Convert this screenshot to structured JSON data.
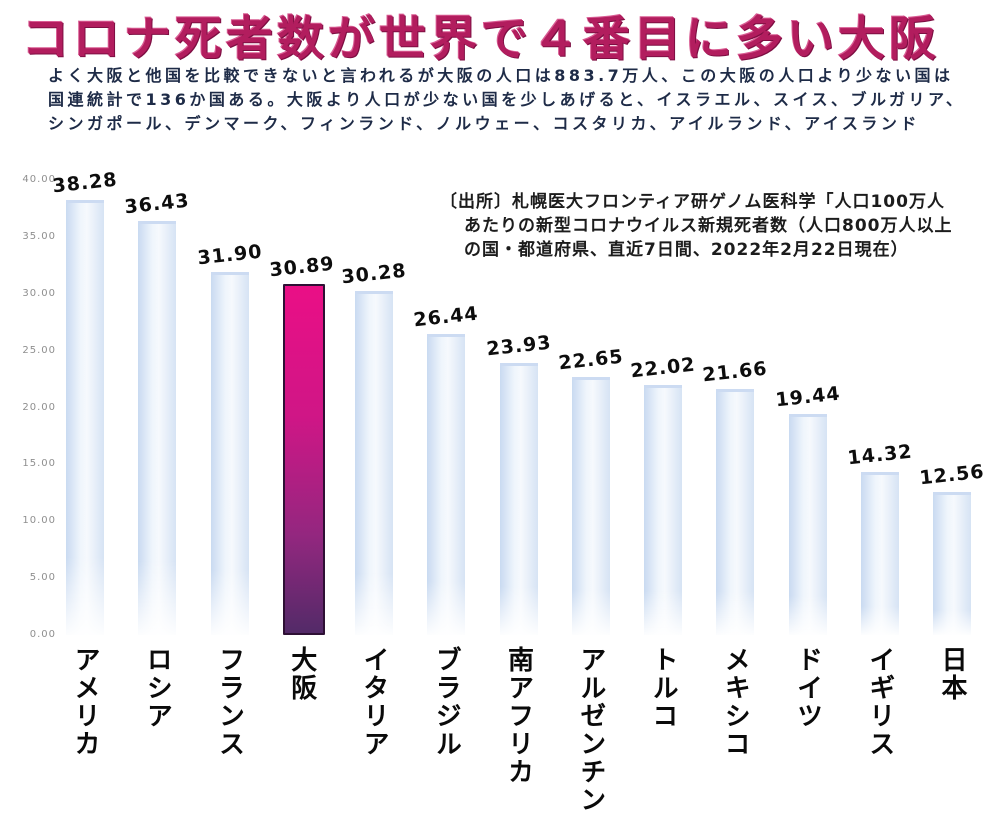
{
  "title": "コロナ死者数が世界で４番目に多い大阪",
  "subtitle_lines": [
    "よく大阪と他国を比較できないと言われるが大阪の人口は883.7万人、この大阪の人口より少ない国は",
    "国連統計で136か国ある。大阪より人口が少ない国を少しあげると、イスラエル、スイス、ブルガリア、",
    "シンガポール、デンマーク、フィンランド、ノルウェー、コスタリカ、アイルランド、アイスランド"
  ],
  "source_lines": [
    "〔出所〕札幌医大フロンティア研ゲノム医科学「人口100万人",
    "あたりの新型コロナウイルス新規死者数（人口800万人以上",
    "の国・都道府県、直近7日間、2022年2月22日現在）"
  ],
  "chart_data": {
    "type": "bar",
    "categories": [
      "アメリカ",
      "ロシア",
      "フランス",
      "大阪",
      "イタリア",
      "ブラジル",
      "南アフリカ",
      "アルゼンチン",
      "トルコ",
      "メキシコ",
      "ドイツ",
      "イギリス",
      "日本"
    ],
    "values": [
      38.28,
      36.43,
      31.9,
      30.89,
      30.28,
      26.44,
      23.93,
      22.65,
      22.02,
      21.66,
      19.44,
      14.32,
      12.56
    ],
    "value_labels": [
      "38.28",
      "36.43",
      "31.90",
      "30.89",
      "30.28",
      "26.44",
      "23.93",
      "22.65",
      "22.02",
      "21.66",
      "19.44",
      "14.32",
      "12.56"
    ],
    "highlight_category": "大阪",
    "highlight_index": 3,
    "y_ticks": [
      "40.00",
      "35.00",
      "30.00",
      "25.00",
      "20.00",
      "15.00",
      "10.00",
      "5.00",
      "0.00"
    ],
    "ylim": [
      0,
      40
    ],
    "grid": false,
    "legend": false,
    "title": "コロナ死者数が世界で４番目に多い大阪",
    "xlabel": "",
    "ylabel": "",
    "colors": {
      "bar_normal_edge": "#c9daf1",
      "bar_normal_center": "#f6f9fd",
      "bar_highlight_top": "#ea0f86",
      "bar_highlight_bottom": "#532a68",
      "title_color": "#b21d5e",
      "subtitle_color": "#1e2b47",
      "value_label_color": "#0d0d0d",
      "tick_color": "#8f8f8f"
    }
  }
}
